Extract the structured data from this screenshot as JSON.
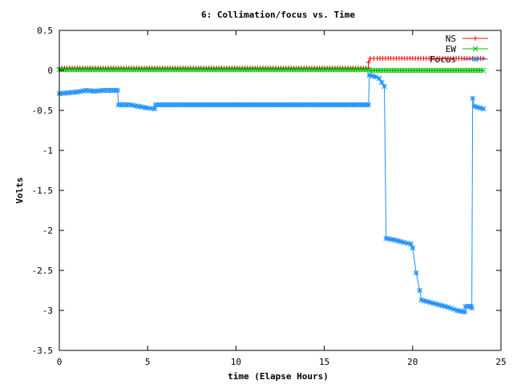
{
  "chart_data": {
    "type": "line",
    "title": "6: Collimation/focus vs. Time",
    "xlabel": "time (Elapse Hours)",
    "ylabel": "Volts",
    "xlim": [
      0,
      25
    ],
    "ylim": [
      -3.5,
      0.5
    ],
    "xticks": [
      0,
      5,
      10,
      15,
      20,
      25
    ],
    "yticks": [
      0.5,
      0,
      -0.5,
      -1,
      -1.5,
      -2,
      -2.5,
      -3,
      -3.5
    ],
    "xtick_labels": [
      "0",
      "5",
      "10",
      "15",
      "20",
      "25"
    ],
    "ytick_labels": [
      "0.5",
      "0",
      "-0.5",
      "-1",
      "-1.5",
      "-2",
      "-2.5",
      "-3",
      "-3.5"
    ],
    "grid": false,
    "legend_position": "top-right",
    "series": [
      {
        "name": "NS",
        "color": "#ff0000",
        "marker": "plus",
        "x": [
          0,
          17.5,
          17.5,
          17.6,
          18.0,
          20.0,
          22.0,
          24.0
        ],
        "y": [
          0.03,
          0.03,
          0.1,
          0.15,
          0.15,
          0.15,
          0.15,
          0.15
        ]
      },
      {
        "name": "EW",
        "color": "#00c000",
        "marker": "cross",
        "x": [
          0,
          17.5,
          17.6,
          20.0,
          24.0
        ],
        "y": [
          0.01,
          0.01,
          0.0,
          0.0,
          0.0
        ]
      },
      {
        "name": "Focus",
        "color": "#1e90ff",
        "marker": "star",
        "x": [
          0,
          0.5,
          1.0,
          1.5,
          2.0,
          2.5,
          3.0,
          3.3,
          3.35,
          4.0,
          4.5,
          5.0,
          5.4,
          5.45,
          7.0,
          10.0,
          13.0,
          15.0,
          17.5,
          17.55,
          17.9,
          18.1,
          18.4,
          18.5,
          19.0,
          19.5,
          19.9,
          20.0,
          20.2,
          20.4,
          20.5,
          21.0,
          21.5,
          22.0,
          22.5,
          22.95,
          23.0,
          23.3,
          23.35,
          23.4,
          23.5,
          24.0
        ],
        "y": [
          -0.29,
          -0.28,
          -0.27,
          -0.25,
          -0.26,
          -0.25,
          -0.25,
          -0.25,
          -0.43,
          -0.43,
          -0.45,
          -0.47,
          -0.48,
          -0.43,
          -0.43,
          -0.43,
          -0.43,
          -0.43,
          -0.43,
          -0.06,
          -0.08,
          -0.1,
          -0.2,
          -2.1,
          -2.12,
          -2.15,
          -2.17,
          -2.22,
          -2.53,
          -2.75,
          -2.87,
          -2.9,
          -2.93,
          -2.96,
          -3.0,
          -3.02,
          -2.95,
          -2.95,
          -2.97,
          -0.35,
          -0.45,
          -0.48
        ]
      }
    ]
  }
}
